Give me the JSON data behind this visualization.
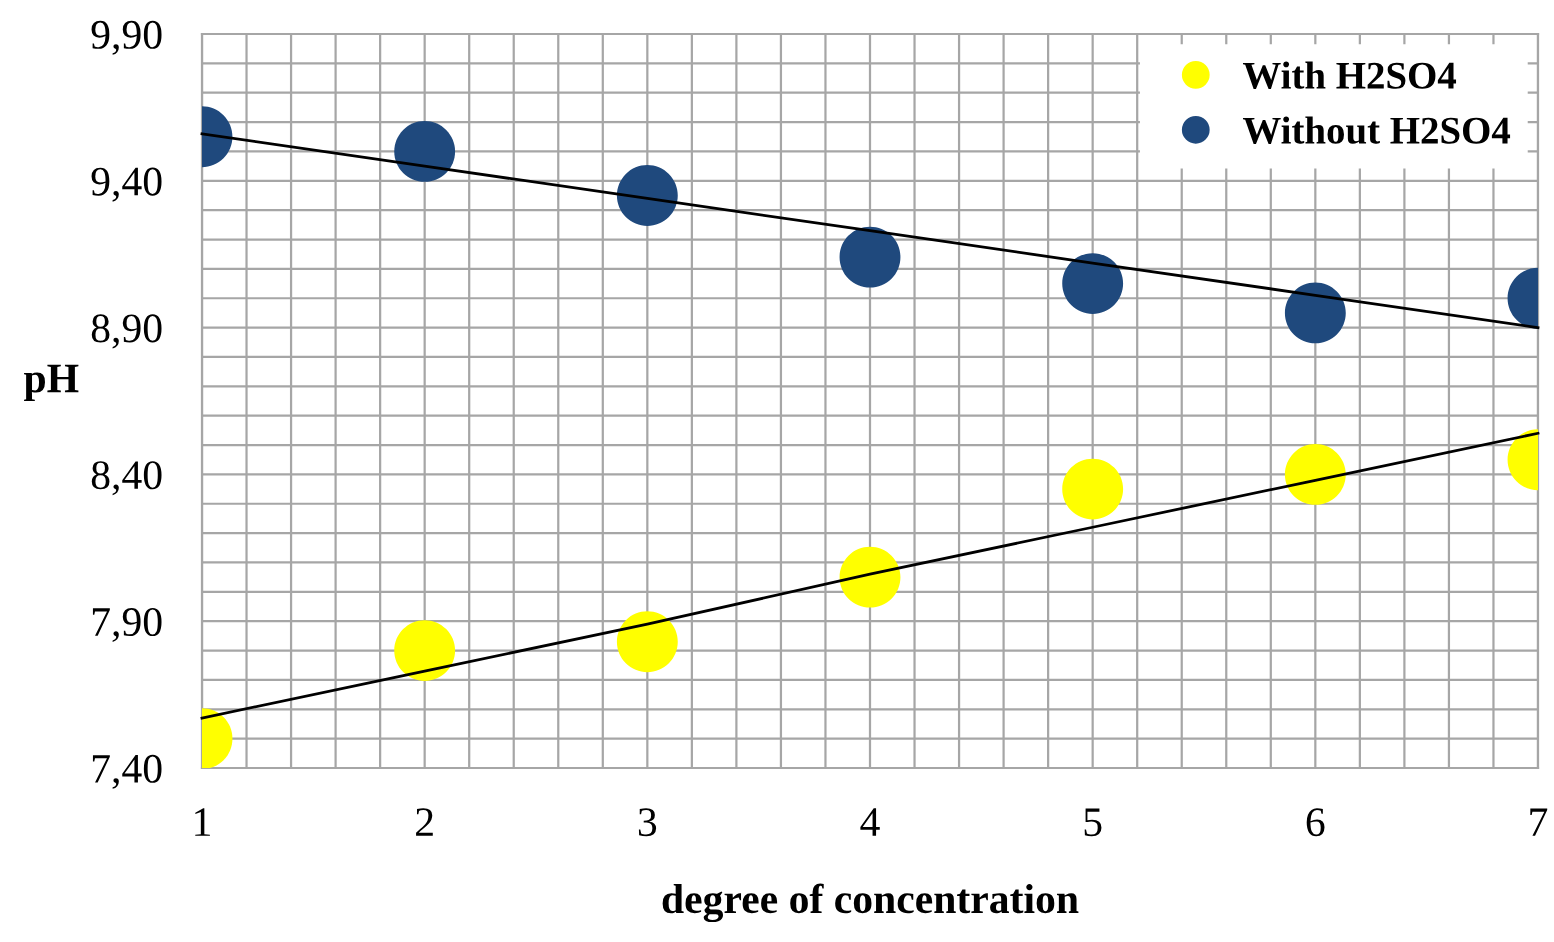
{
  "chart_data": {
    "type": "scatter",
    "xlabel": "degree of concentration",
    "ylabel": "pH",
    "x": [
      1,
      2,
      3,
      4,
      5,
      6,
      7
    ],
    "series": [
      {
        "name": "With H2SO4",
        "color": "#ffff00",
        "values": [
          7.5,
          7.8,
          7.83,
          8.05,
          8.35,
          8.4,
          8.45
        ]
      },
      {
        "name": "Without H2SO4",
        "color": "#1f497d",
        "values": [
          9.55,
          9.5,
          9.35,
          9.14,
          9.05,
          8.95,
          9.0
        ]
      },
      {
        "type": "line",
        "marker": "none",
        "color": "#000000",
        "values": [
          7.57,
          7.73,
          7.89,
          8.06,
          8.22,
          8.38,
          8.54
        ]
      },
      {
        "type": "line",
        "marker": "none",
        "color": "#000000",
        "values": [
          9.56,
          9.45,
          9.34,
          9.23,
          9.12,
          9.01,
          8.9
        ]
      }
    ],
    "xlim": [
      1,
      7
    ],
    "xticks": [
      1,
      {
        "value": 1.2,
        "label": null
      },
      {
        "value": 1.4,
        "label": null
      },
      {
        "value": 1.6,
        "label": null
      },
      {
        "value": 1.8,
        "label": null
      },
      2,
      {
        "value": 2.2,
        "label": null
      },
      {
        "value": 2.4,
        "label": null
      },
      {
        "value": 2.6,
        "label": null
      },
      {
        "value": 2.8,
        "label": null
      },
      3,
      {
        "value": 3.2,
        "label": null
      },
      {
        "value": 3.4,
        "label": null
      },
      {
        "value": 3.6,
        "label": null
      },
      {
        "value": 3.8,
        "label": null
      },
      4,
      {
        "value": 4.2,
        "label": null
      },
      {
        "value": 4.4,
        "label": null
      },
      {
        "value": 4.6,
        "label": null
      },
      {
        "value": 4.8,
        "label": null
      },
      5,
      {
        "value": 5.2,
        "label": null
      },
      {
        "value": 5.4,
        "label": null
      },
      {
        "value": 5.6,
        "label": null
      },
      {
        "value": 5.8,
        "label": null
      },
      6,
      {
        "value": 6.2,
        "label": null
      },
      {
        "value": 6.4,
        "label": null
      },
      {
        "value": 6.6,
        "label": null
      },
      {
        "value": 6.8,
        "label": null
      },
      7
    ],
    "ylim": [
      7.4,
      9.9
    ],
    "yticks": [
      {
        "value": 7.4,
        "label": "7,40"
      },
      {
        "value": 7.5,
        "label": null
      },
      {
        "value": 7.6,
        "label": null
      },
      {
        "value": 7.7,
        "label": null
      },
      {
        "value": 7.8,
        "label": null
      },
      {
        "value": 7.9,
        "label": "7,90"
      },
      {
        "value": 8.0,
        "label": null
      },
      {
        "value": 8.1,
        "label": null
      },
      {
        "value": 8.2,
        "label": null
      },
      {
        "value": 8.3,
        "label": null
      },
      {
        "value": 8.4,
        "label": "8,40"
      },
      {
        "value": 8.5,
        "label": null
      },
      {
        "value": 8.6,
        "label": null
      },
      {
        "value": 8.7,
        "label": null
      },
      {
        "value": 8.8,
        "label": null
      },
      {
        "value": 8.9,
        "label": "8,90"
      },
      {
        "value": 9.0,
        "label": null
      },
      {
        "value": 9.1,
        "label": null
      },
      {
        "value": 9.2,
        "label": null
      },
      {
        "value": 9.3,
        "label": null
      },
      {
        "value": 9.4,
        "label": "9,40"
      },
      {
        "value": 9.5,
        "label": null
      },
      {
        "value": 9.6,
        "label": null
      },
      {
        "value": 9.7,
        "label": null
      },
      {
        "value": 9.8,
        "label": null
      },
      {
        "value": 9.9,
        "label": "9,90"
      }
    ],
    "grid": true,
    "legend": "top right",
    "marker": "circle"
  }
}
